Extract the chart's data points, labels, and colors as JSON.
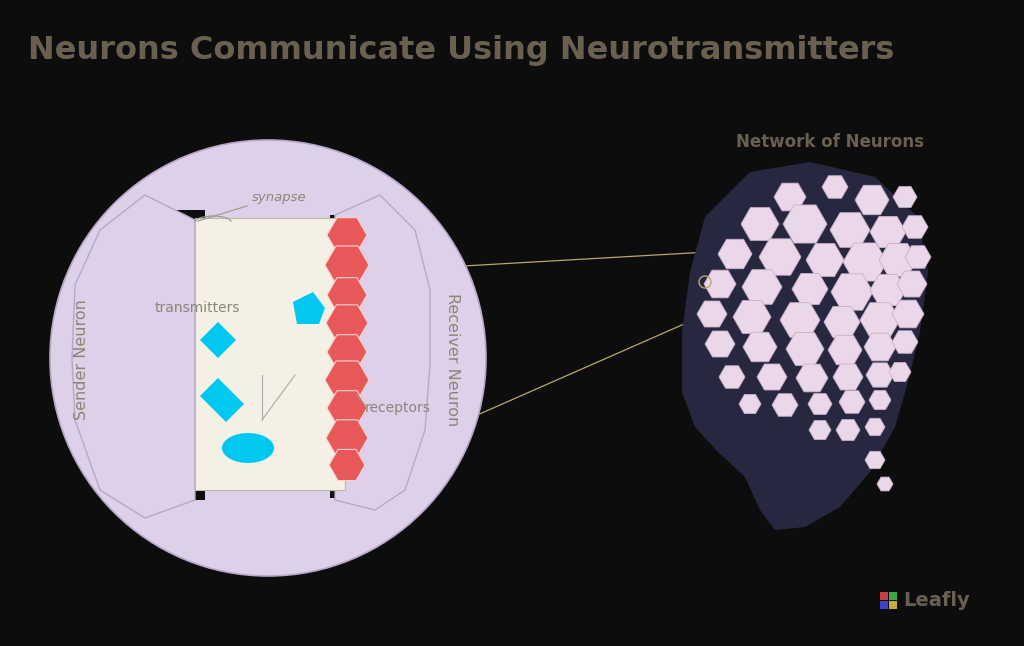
{
  "title": "Neurons Communicate Using Neurotransmitters",
  "title_color": "#6a6050",
  "title_fontsize": 23,
  "bg_color": "#0d0d0d",
  "synapse_circle_color": "#ddd0e8",
  "synapse_circle_linecolor": "#b8a8c8",
  "neuron_body_color": "#ddd0e8",
  "neuron_dark_color": "#0d0d0d",
  "synapse_gap_color": "#f5f0e5",
  "transmitter_color": "#00c8f0",
  "receptor_color": "#e85858",
  "receptor_line_color": "#f5d5d5",
  "head_color": "#272740",
  "hexagon_color": "#ead8ea",
  "hex_edge_color": "#c8b0c8",
  "network_label_color": "#6a6050",
  "label_color": "#888878",
  "leafly_text_color": "#6a6050",
  "connector_color": "#b8a870",
  "synapse_label": "synapse",
  "transmitters_label": "transmitters",
  "receptors_label": "receptors",
  "sender_label": "Sender Neuron",
  "receiver_label": "Receiver Neuron",
  "network_label": "Network of Neurons",
  "leafly_label": "Leafly",
  "logo_colors": [
    "#c84040",
    "#40a840",
    "#4040c8",
    "#c8a840"
  ]
}
